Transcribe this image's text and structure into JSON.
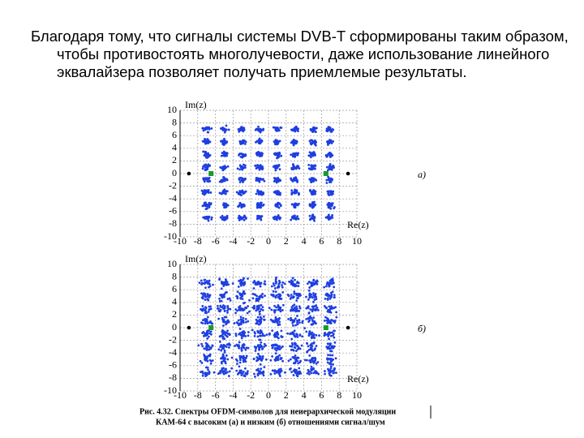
{
  "text": {
    "paragraph": "Благодаря тому, что сигналы системы DVB-T сформированы таким образом, чтобы противостоять многолучевости, даже использование линейного эквалайзера позволяет получать приемлемые результаты."
  },
  "figure": {
    "panels": [
      {
        "y_label": "Im(z)",
        "x_label": "Re(z)",
        "tag": "а)",
        "xticks": [
          -10,
          -8,
          -6,
          -4,
          -2,
          0,
          2,
          4,
          6,
          8,
          10
        ],
        "yticks": [
          10,
          8,
          6,
          4,
          2,
          0,
          -2,
          -4,
          -6,
          -8,
          -10
        ]
      },
      {
        "y_label": "Im(z)",
        "x_label": "Re(z)",
        "tag": "б)",
        "xticks": [
          -10,
          -8,
          -6,
          -4,
          -2,
          0,
          2,
          4,
          6,
          8,
          10
        ],
        "yticks": [
          10,
          8,
          6,
          4,
          2,
          0,
          -2,
          -4,
          -6,
          -8,
          -10
        ]
      }
    ],
    "caption": [
      "Рис. 4.32. Спектры OFDM-символов для неиерархической модуляции",
      "КАМ-64 с высоким (а) и низким (б) отношениями сигнал/шум"
    ]
  }
}
